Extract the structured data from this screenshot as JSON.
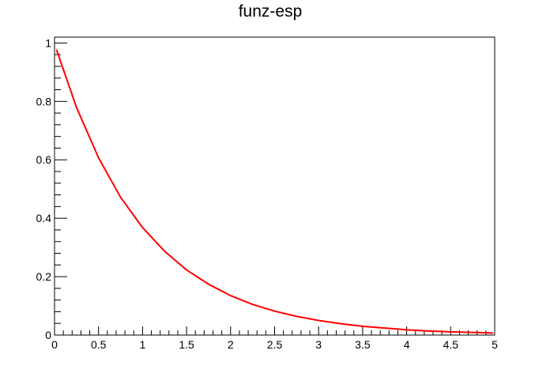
{
  "chart_data": {
    "type": "line",
    "title": "funz-esp",
    "xlabel": "",
    "ylabel": "",
    "xlim": [
      0,
      5
    ],
    "ylim": [
      0,
      1.02
    ],
    "grid": false,
    "legend": "none",
    "x_ticks": [
      "0",
      "0.5",
      "1",
      "1.5",
      "2",
      "2.5",
      "3",
      "3.5",
      "4",
      "4.5",
      "5"
    ],
    "y_ticks": [
      "0",
      "0.2",
      "0.4",
      "0.6",
      "0.8",
      "1"
    ],
    "series": [
      {
        "color": "#ff0000",
        "x": [
          0.025,
          0.25,
          0.5,
          0.75,
          1.0,
          1.25,
          1.5,
          1.75,
          2.0,
          2.25,
          2.5,
          2.75,
          3.0,
          3.25,
          3.5,
          3.75,
          4.0,
          4.25,
          4.5,
          4.75,
          4.975
        ],
        "y": [
          0.975,
          0.779,
          0.607,
          0.472,
          0.368,
          0.287,
          0.223,
          0.174,
          0.135,
          0.105,
          0.082,
          0.064,
          0.05,
          0.039,
          0.03,
          0.024,
          0.018,
          0.014,
          0.011,
          0.009,
          0.007
        ]
      }
    ]
  }
}
